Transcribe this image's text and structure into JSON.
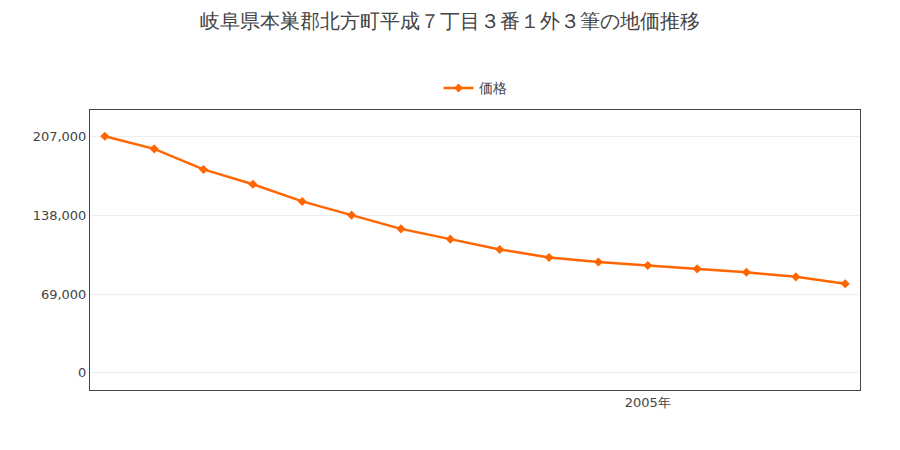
{
  "chart_data": {
    "type": "line",
    "title": "岐阜県本巣郡北方町平成７丁目３番１外３筆の地価推移",
    "x": [
      1994,
      1995,
      1996,
      1997,
      1998,
      1999,
      2000,
      2001,
      2002,
      2003,
      2004,
      2005,
      2006,
      2007,
      2008,
      2009
    ],
    "series": [
      {
        "name": "価格",
        "color": "#FF6600",
        "marker": "diamond",
        "values": [
          207000,
          196000,
          178000,
          165000,
          150000,
          138000,
          126000,
          117000,
          108000,
          101000,
          97000,
          94000,
          91000,
          88000,
          84000,
          78000
        ]
      }
    ],
    "xlim": [
      1993.7,
      2009.3
    ],
    "xticks": [
      {
        "value": 2005,
        "label": "2005年"
      }
    ],
    "ylim": [
      -15000,
      230000
    ],
    "yticks": [
      0,
      {
        "value": 69000,
        "label": "69,000"
      },
      {
        "value": 138000,
        "label": "138,000"
      },
      {
        "value": 207000,
        "label": "207,000"
      }
    ],
    "grid": "y",
    "legend": "top"
  }
}
